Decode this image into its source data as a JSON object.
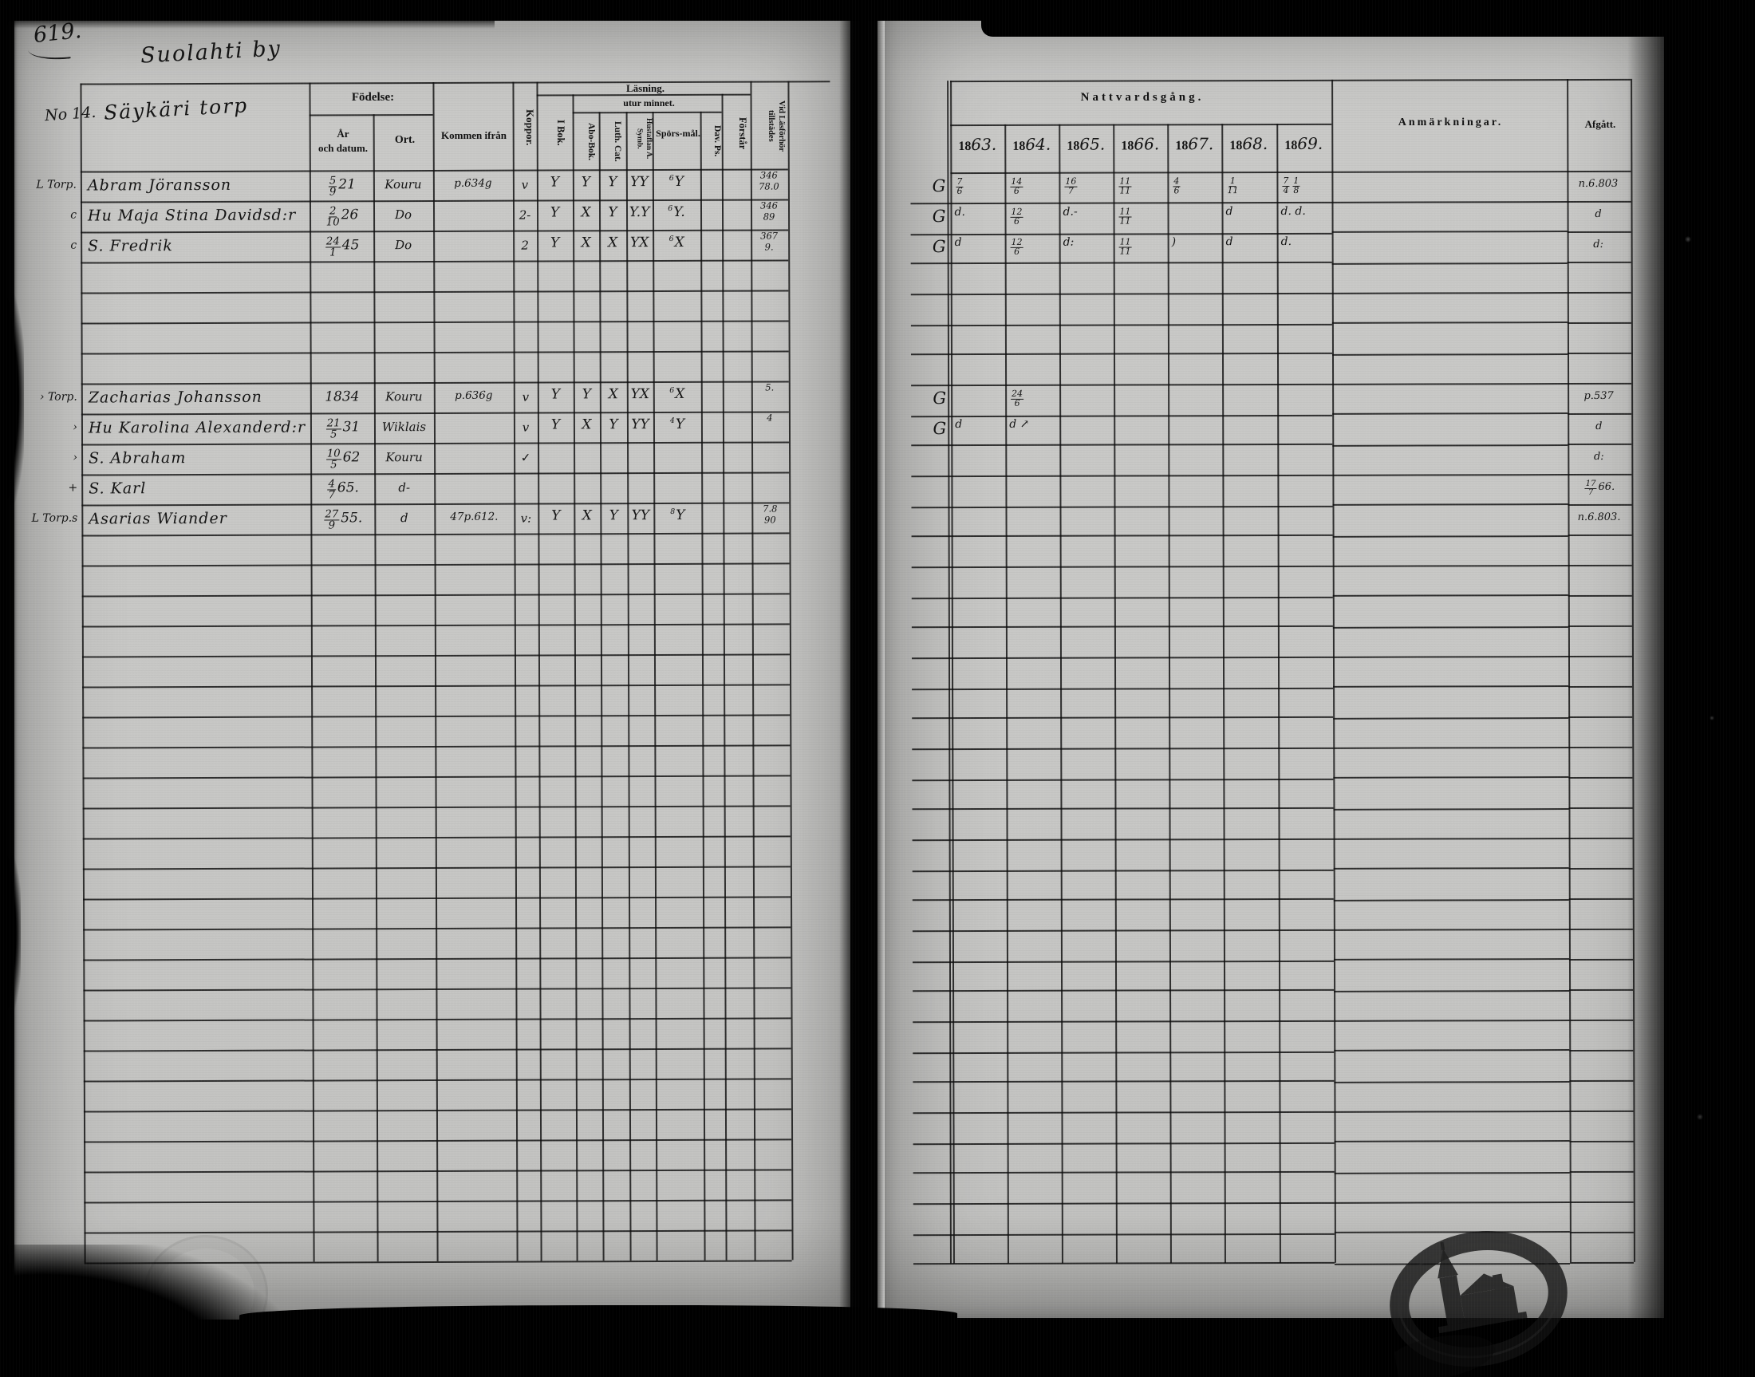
{
  "scan": {
    "page_number": "619."
  },
  "left_page": {
    "village_title": "Suolahti by",
    "no_label": "No 14.",
    "farm_title": "Säykäri torp",
    "header": {
      "fodelse": "Födelse:",
      "ar": "År",
      "och_datum": "och datum.",
      "ort": "Ort.",
      "kommen_ifran": "Kommen ifrån",
      "koppor": "Koppor.",
      "lasning": "Läsning.",
      "utur_minnet": "utur minnet.",
      "i_bok": "I Bok.",
      "abo_bok": "Abo-Bok.",
      "luth_cat": "Luth. Cat.",
      "hustaflan_symb": "Hustaflan A. Symb.",
      "spors_mal": "Spörs-mål.",
      "dav_ps": "Dav. Ps.",
      "forstar": "Förstår",
      "vid_lasforhor": "Vid Läsförhör tillstädes"
    },
    "rows_total": 36,
    "entries": [
      {
        "row": 0,
        "margin": "L  Torp.",
        "name": "Abram Jöransson",
        "birth": "5/9 21",
        "ort": "Kouru",
        "kommen": "p. 634 g",
        "koppor": "v",
        "marks": [
          "Y",
          "Y",
          "Y",
          "YY",
          "Y"
        ],
        "spors_sup": "6",
        "vid": [
          "346",
          "78.0"
        ]
      },
      {
        "row": 1,
        "margin": "c",
        "name": "Hu Maja Stina Davidsd:r",
        "birth": "2/10 26",
        "ort": "Do",
        "kommen": "",
        "koppor": "2-",
        "marks": [
          "Y",
          "X",
          "Y",
          "Y.Y",
          "Y."
        ],
        "spors_sup": "6",
        "vid": [
          "346",
          "89"
        ]
      },
      {
        "row": 2,
        "margin": "c",
        "name": "S. Fredrik",
        "birth": "24/1 45",
        "ort": "Do",
        "kommen": "",
        "koppor": "2",
        "marks": [
          "Y",
          "X",
          "X",
          "YX",
          "X"
        ],
        "spors_sup": "6",
        "vid": [
          "367",
          "9."
        ]
      },
      {
        "row": 7,
        "margin": "›  Torp.",
        "name": "Zacharias Johansson",
        "birth": "1834",
        "ort": "Kouru",
        "kommen": "p. 636 g",
        "koppor": "v",
        "marks": [
          "Y",
          "Y",
          "X",
          "YX",
          "X"
        ],
        "spors_sup": "6",
        "vid": [
          "5."
        ]
      },
      {
        "row": 8,
        "margin": "›",
        "name": "Hu Karolina Alexanderd:r",
        "birth": "21/5 31",
        "ort": "Wiklais",
        "kommen": "",
        "koppor": "v",
        "marks": [
          "Y",
          "X",
          "Y",
          "YY",
          "Y"
        ],
        "spors_sup": "4",
        "vid": [
          "4"
        ]
      },
      {
        "row": 9,
        "margin": "›",
        "name": "S. Abraham",
        "birth": "10/5 62",
        "ort": "Kouru",
        "kommen": "",
        "koppor": "✓",
        "marks": [],
        "vid": []
      },
      {
        "row": 10,
        "margin": "+",
        "name": "S. Karl",
        "birth": "4/7 65.",
        "ort": "d-",
        "kommen": "",
        "koppor": "",
        "marks": [],
        "vid": []
      },
      {
        "row": 11,
        "margin": "L  Torp.s",
        "name": "Asarias Wiander",
        "birth": "27/9 55.",
        "ort": "d",
        "kommen": "47 p. 612.",
        "koppor": "v:",
        "marks": [
          "Y",
          "X",
          "Y",
          "YY",
          "Y"
        ],
        "spors_sup": "8",
        "vid": [
          "7.8",
          "90"
        ]
      }
    ]
  },
  "right_page": {
    "header": {
      "nattvardsgang": "Nattvardsgång.",
      "years": [
        "1863.",
        "1864.",
        "1865.",
        "1866.",
        "1867.",
        "1868.",
        "1869."
      ],
      "anmarkningar": "Anmärkningar.",
      "afgatt": "Afgått."
    },
    "rows_total": 36,
    "entries": [
      {
        "row": 0,
        "g": "G",
        "years": [
          "7/6",
          "14/6",
          "16/7",
          "11/11",
          "4/6",
          "1/11",
          "7/4 1/8"
        ],
        "afgatt": "n. 6. 803"
      },
      {
        "row": 1,
        "g": "G",
        "years": [
          "d.",
          "12/6",
          "d.-",
          "11/11",
          "",
          "d",
          "d. d."
        ],
        "afgatt": "d"
      },
      {
        "row": 2,
        "g": "G",
        "years": [
          "d",
          "12/6",
          "d:",
          "11/11",
          ")",
          "d",
          "d."
        ],
        "afgatt": "d:"
      },
      {
        "row": 7,
        "g": "G",
        "years": [
          "",
          "24/6",
          "",
          "",
          "",
          "",
          ""
        ],
        "afgatt": "p. 537"
      },
      {
        "row": 8,
        "g": "G",
        "years": [
          "d",
          "d ↗",
          "",
          "",
          "",
          "",
          ""
        ],
        "afgatt": "d"
      },
      {
        "row": 9,
        "years": [
          "",
          "",
          "",
          "",
          "",
          "",
          ""
        ],
        "afgatt": "d:"
      },
      {
        "row": 10,
        "years": [
          "",
          "",
          "",
          "",
          "",
          "",
          ""
        ],
        "afgatt": "17/7 66."
      },
      {
        "row": 11,
        "years": [
          "",
          "",
          "",
          "",
          "",
          "",
          ""
        ],
        "afgatt": "n. 6. 803."
      }
    ]
  },
  "stamps": {
    "bottom_right": "oval-church-archive-stamp",
    "bottom_left": "faint-embossed-round-seal"
  }
}
